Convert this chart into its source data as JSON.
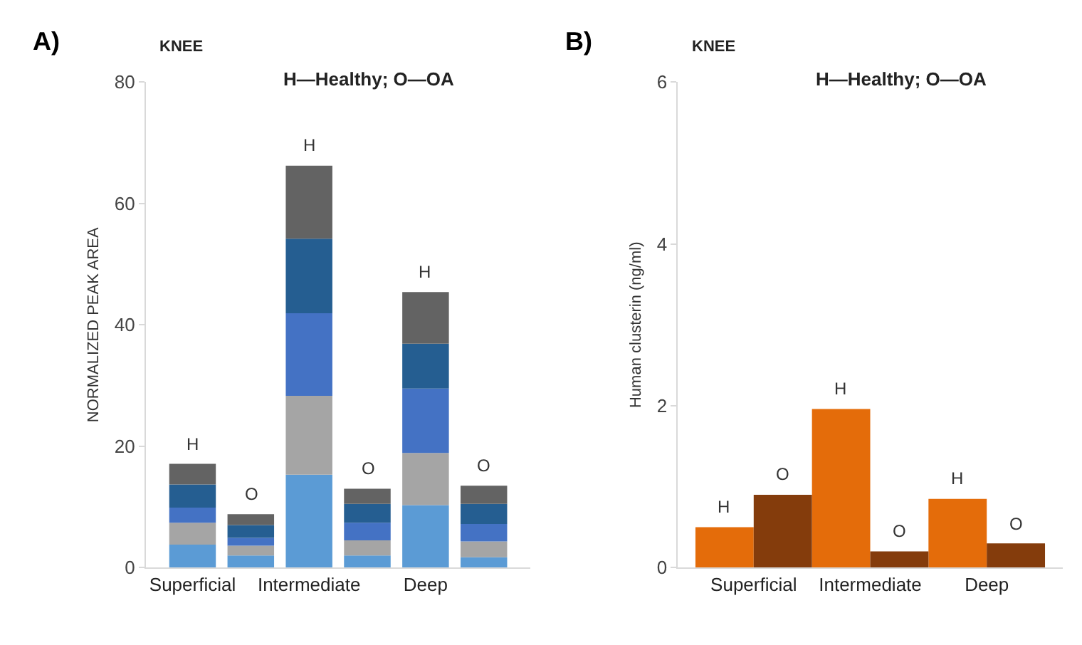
{
  "chart_data": [
    {
      "type": "bar",
      "title": "KNEE",
      "subtitle": "H—Healthy; O—OA",
      "ylabel": "NORMALIZED PEAK AREA",
      "categories": [
        "Superficial",
        null,
        "Intermediate",
        null,
        "Deep",
        null
      ],
      "stacked": true,
      "ylim": [
        0,
        80
      ],
      "yticks": [
        0,
        20,
        40,
        60,
        80
      ],
      "series": [
        {
          "color": "#5b9bd5",
          "values": [
            3.8,
            2.0,
            15.3,
            2.0,
            10.3,
            1.7
          ]
        },
        {
          "color": "#a5a5a5",
          "values": [
            3.6,
            1.6,
            13.0,
            2.5,
            8.6,
            2.6
          ]
        },
        {
          "color": "#4472c4",
          "values": [
            2.5,
            1.3,
            13.6,
            2.9,
            10.6,
            2.9
          ]
        },
        {
          "color": "#255e91",
          "values": [
            3.8,
            2.1,
            12.3,
            3.1,
            7.4,
            3.3
          ]
        },
        {
          "color": "#636363",
          "values": [
            3.4,
            1.8,
            12.0,
            2.5,
            8.5,
            3.0
          ],
          "value_labels": [
            "H",
            "O",
            "H",
            "O",
            "H",
            "O"
          ]
        }
      ],
      "annotations": [
        "A)"
      ]
    },
    {
      "type": "bar",
      "title": "KNEE",
      "subtitle": "H—Healthy; O—OA",
      "ylabel": "Human clusterin (ng/ml)",
      "categories": [
        "Superficial",
        "Intermediate",
        "Deep"
      ],
      "ylim": [
        0,
        6
      ],
      "yticks": [
        0,
        2,
        4,
        6
      ],
      "series": [
        {
          "color": "#e46c0a",
          "values": [
            0.5,
            1.96,
            0.85
          ],
          "value_labels": [
            "H",
            "H",
            "H"
          ]
        },
        {
          "color": "#843c0c",
          "values": [
            0.9,
            0.2,
            0.3
          ],
          "value_labels": [
            "O",
            "O",
            "O"
          ]
        }
      ],
      "annotations": [
        "B)"
      ]
    }
  ]
}
